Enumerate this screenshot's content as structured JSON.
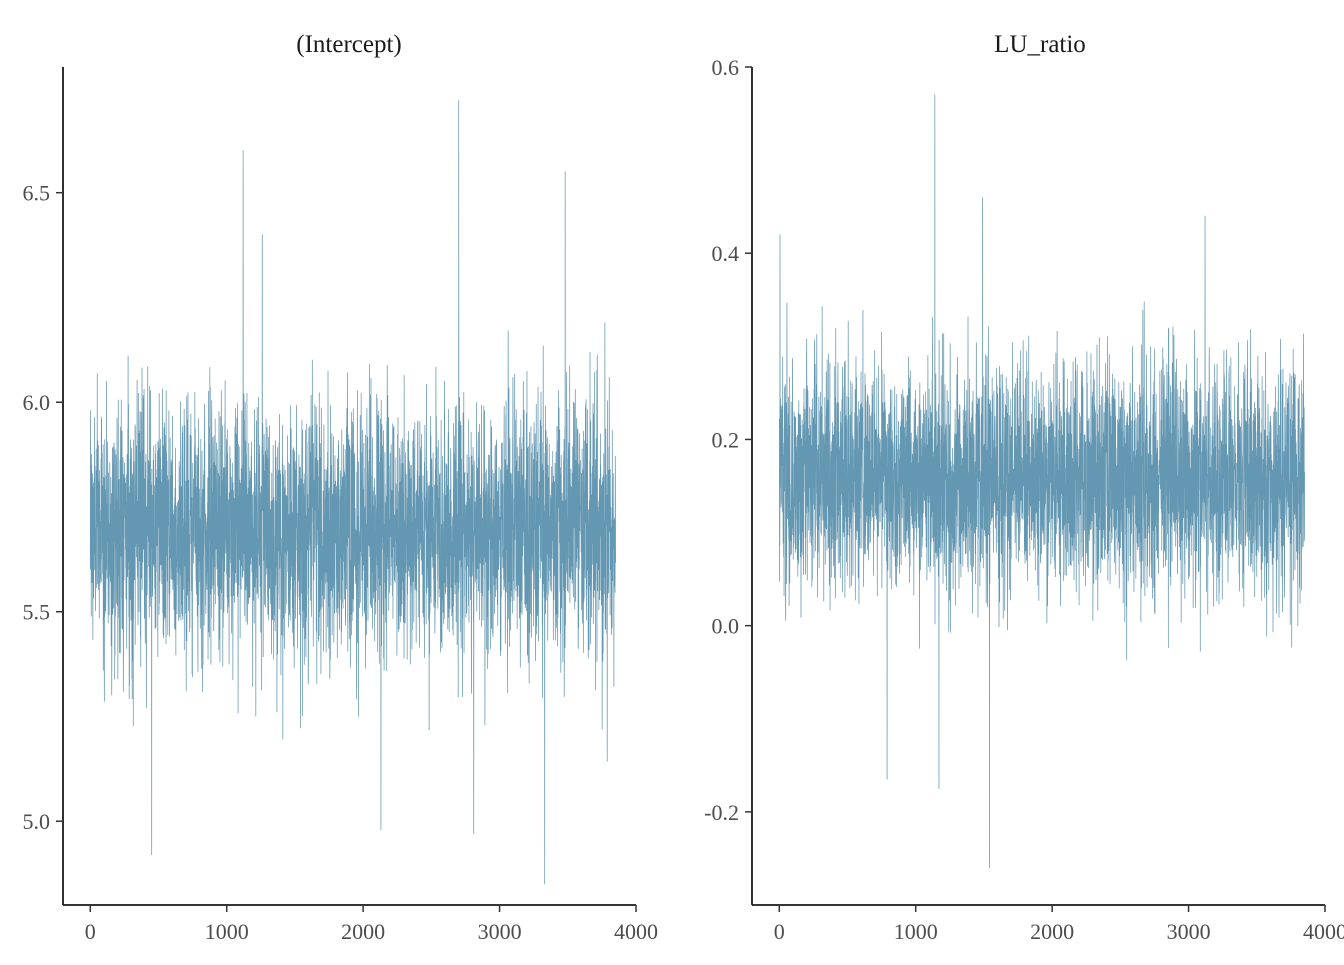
{
  "chart_data": [
    {
      "type": "line",
      "title": "(Intercept)",
      "color": "#6497b1",
      "x_range": [
        0,
        3850
      ],
      "xlim": [
        -200,
        4000
      ],
      "ylim": [
        4.8,
        6.8
      ],
      "x_ticks": [
        0,
        1000,
        2000,
        3000,
        4000
      ],
      "x_tick_labels": [
        "0",
        "1000",
        "2000",
        "3000",
        "4000"
      ],
      "y_ticks": [
        5.0,
        5.5,
        6.0,
        6.5
      ],
      "y_tick_labels": [
        "5.0",
        "5.5",
        "6.0",
        "6.5"
      ],
      "series": [
        {
          "summary": {
            "n_draws": 3850,
            "center": 5.7,
            "sd": 0.15,
            "min": 4.85,
            "max": 6.72
          },
          "notable_points": [
            {
              "x": 450,
              "y": 4.92
            },
            {
              "x": 1120,
              "y": 6.6
            },
            {
              "x": 2700,
              "y": 6.72
            },
            {
              "x": 3330,
              "y": 4.85
            },
            {
              "x": 3480,
              "y": 6.55
            },
            {
              "x": 2810,
              "y": 4.97
            },
            {
              "x": 2130,
              "y": 4.98
            },
            {
              "x": 1260,
              "y": 6.4
            }
          ]
        }
      ]
    },
    {
      "type": "line",
      "title": "LU_ratio",
      "color": "#6497b1",
      "x_range": [
        0,
        3850
      ],
      "xlim": [
        -200,
        4000
      ],
      "ylim": [
        -0.3,
        0.6
      ],
      "x_ticks": [
        0,
        1000,
        2000,
        3000,
        4000
      ],
      "x_tick_labels": [
        "0",
        "1000",
        "2000",
        "3000",
        "4000"
      ],
      "y_ticks": [
        -0.2,
        0.0,
        0.2,
        0.4,
        0.6
      ],
      "y_tick_labels": [
        "-0.2",
        "0.0",
        "0.2",
        "0.4",
        "0.6"
      ],
      "series": [
        {
          "summary": {
            "n_draws": 3850,
            "center": 0.16,
            "sd": 0.06,
            "min": -0.26,
            "max": 0.57
          },
          "notable_points": [
            {
              "x": 1140,
              "y": 0.57
            },
            {
              "x": 1540,
              "y": -0.26
            },
            {
              "x": 1170,
              "y": -0.175
            },
            {
              "x": 790,
              "y": -0.165
            },
            {
              "x": 1490,
              "y": 0.46
            },
            {
              "x": 3120,
              "y": 0.44
            },
            {
              "x": 5,
              "y": 0.42
            }
          ]
        }
      ]
    }
  ]
}
